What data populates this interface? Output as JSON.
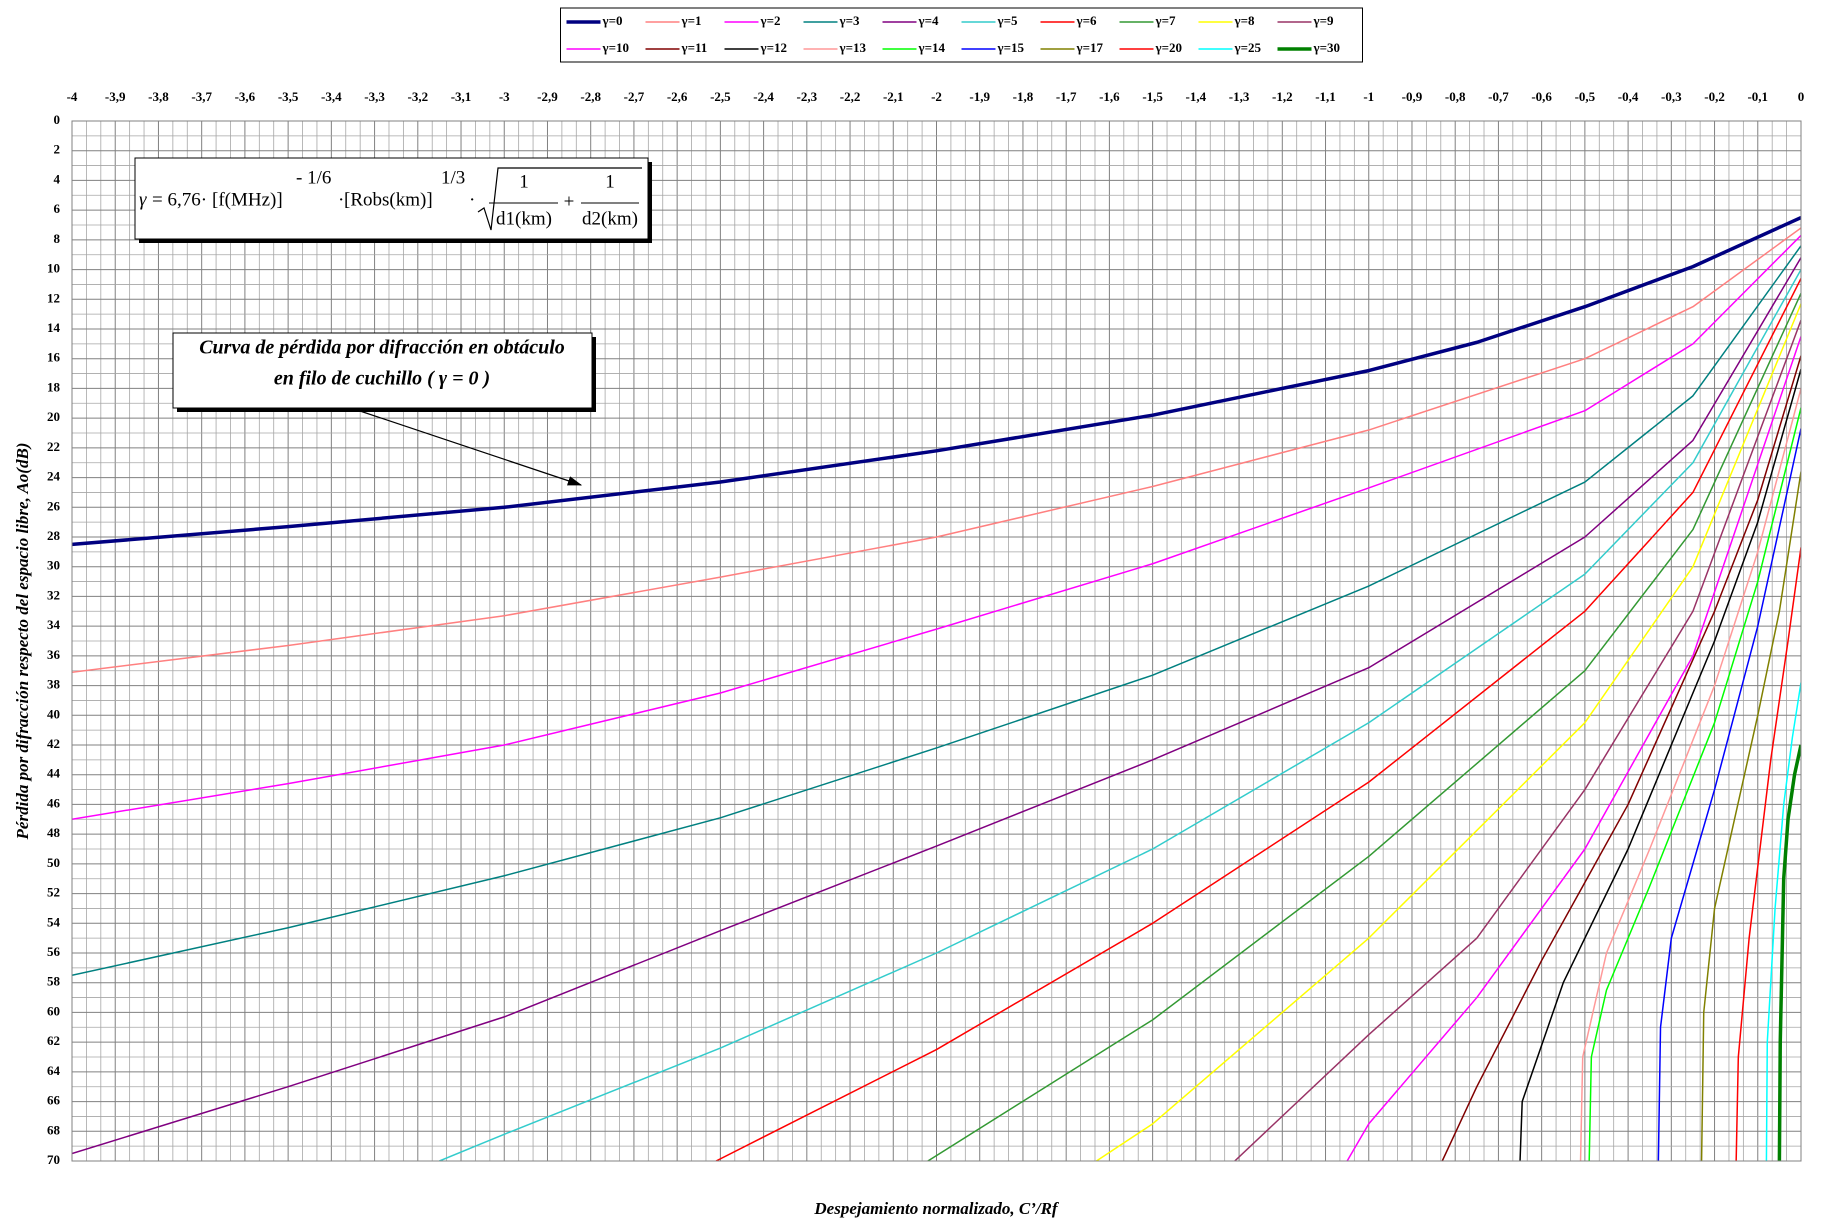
{
  "chart_data": {
    "type": "line",
    "xlabel": "Despejamiento normalizado, C’/Rf",
    "ylabel": "Pérdida por difracción respecto del espacio libre, Ao(dB)",
    "xlim": [
      -4,
      0
    ],
    "ylim": [
      0,
      70
    ],
    "y_reversed": true,
    "x_axis_position": "top",
    "grid": true,
    "legend": "top",
    "xticks": [
      -4,
      {
        "value": -3.9,
        "label": "-3,9"
      },
      {
        "value": -3.8,
        "label": "-3,8"
      },
      {
        "value": -3.7,
        "label": "-3,7"
      },
      {
        "value": -3.6,
        "label": "-3,6"
      },
      {
        "value": -3.5,
        "label": "-3,5"
      },
      {
        "value": -3.4,
        "label": "-3,4"
      },
      {
        "value": -3.3,
        "label": "-3,3"
      },
      {
        "value": -3.2,
        "label": "-3,2"
      },
      {
        "value": -3.1,
        "label": "-3,1"
      },
      -3,
      {
        "value": -2.9,
        "label": "-2,9"
      },
      {
        "value": -2.8,
        "label": "-2,8"
      },
      {
        "value": -2.7,
        "label": "-2,7"
      },
      {
        "value": -2.6,
        "label": "-2,6"
      },
      {
        "value": -2.5,
        "label": "-2,5"
      },
      {
        "value": -2.4,
        "label": "-2,4"
      },
      {
        "value": -2.3,
        "label": "-2,3"
      },
      {
        "value": -2.2,
        "label": "-2,2"
      },
      {
        "value": -2.1,
        "label": "-2,1"
      },
      -2,
      {
        "value": -1.9,
        "label": "-1,9"
      },
      {
        "value": -1.8,
        "label": "-1,8"
      },
      {
        "value": -1.7,
        "label": "-1,7"
      },
      {
        "value": -1.6,
        "label": "-1,6"
      },
      {
        "value": -1.5,
        "label": "-1,5"
      },
      {
        "value": -1.4,
        "label": "-1,4"
      },
      {
        "value": -1.3,
        "label": "-1,3"
      },
      {
        "value": -1.2,
        "label": "-1,2"
      },
      {
        "value": -1.1,
        "label": "-1,1"
      },
      -1,
      {
        "value": -0.9,
        "label": "-0,9"
      },
      {
        "value": -0.8,
        "label": "-0,8"
      },
      {
        "value": -0.7,
        "label": "-0,7"
      },
      {
        "value": -0.6,
        "label": "-0,6"
      },
      {
        "value": -0.5,
        "label": "-0,5"
      },
      {
        "value": -0.4,
        "label": "-0,4"
      },
      {
        "value": -0.3,
        "label": "-0,3"
      },
      {
        "value": -0.2,
        "label": "-0,2"
      },
      {
        "value": -0.1,
        "label": "-0,1"
      },
      0
    ],
    "yticks": [
      0,
      2,
      4,
      6,
      8,
      10,
      12,
      14,
      16,
      18,
      20,
      22,
      24,
      26,
      28,
      30,
      32,
      34,
      36,
      38,
      40,
      42,
      44,
      46,
      48,
      50,
      52,
      54,
      56,
      58,
      60,
      62,
      64,
      66,
      68,
      70
    ],
    "series": [
      {
        "name": "γ=0",
        "color": "#000080",
        "line_width": 3.5,
        "x": [
          -4,
          -3.5,
          -3,
          -2.5,
          -2,
          -1.5,
          -1,
          -0.75,
          -0.5,
          -0.25,
          0
        ],
        "values": [
          28.5,
          27.3,
          26.0,
          24.3,
          22.2,
          19.8,
          16.8,
          14.9,
          12.5,
          9.8,
          6.5
        ]
      },
      {
        "name": "γ=1",
        "color": "#ff8080",
        "line_width": 1.5,
        "x": [
          -4,
          -3.5,
          -3,
          -2.5,
          -2,
          -1.5,
          -1,
          -0.5,
          -0.25,
          0
        ],
        "values": [
          37.1,
          35.3,
          33.3,
          30.7,
          28,
          24.6,
          20.8,
          16,
          12.5,
          7.2
        ]
      },
      {
        "name": "γ=2",
        "color": "#ff00ff",
        "line_width": 1.5,
        "x": [
          -4,
          -3.5,
          -3,
          -2.5,
          -2,
          -1.5,
          -1,
          -0.5,
          -0.25,
          0
        ],
        "values": [
          47,
          44.6,
          42,
          38.5,
          34.2,
          29.8,
          24.7,
          19.5,
          15,
          7.7
        ]
      },
      {
        "name": "γ=3",
        "color": "#008080",
        "line_width": 1.5,
        "x": [
          -4,
          -3.5,
          -3,
          -2.5,
          -2,
          -1.5,
          -1,
          -0.5,
          -0.25,
          0
        ],
        "values": [
          57.5,
          54.3,
          50.8,
          46.9,
          42.2,
          37.3,
          31.3,
          24.3,
          18.5,
          8.4
        ]
      },
      {
        "name": "γ=4",
        "color": "#800080",
        "line_width": 1.5,
        "x": [
          -4,
          -3.5,
          -3,
          -2.5,
          -2,
          -1.5,
          -1,
          -0.5,
          -0.25,
          0
        ],
        "values": [
          69.5,
          65,
          60.3,
          54.5,
          48.8,
          43,
          36.8,
          28,
          21.5,
          9.2
        ]
      },
      {
        "name": "γ=5",
        "color": "#33cccc",
        "line_width": 1.5,
        "x": [
          -3.15,
          -3,
          -2.5,
          -2,
          -1.5,
          -1,
          -0.5,
          -0.25,
          0
        ],
        "values": [
          70,
          68.2,
          62.4,
          56,
          49,
          40.5,
          30.5,
          23,
          10
        ]
      },
      {
        "name": "γ=6",
        "color": "#ff0000",
        "line_width": 1.5,
        "x": [
          -2.51,
          -2,
          -1.5,
          -1,
          -0.5,
          -0.25,
          0
        ],
        "values": [
          70,
          62.5,
          54,
          44.5,
          33,
          25,
          10.6
        ]
      },
      {
        "name": "γ=7",
        "color": "#339933",
        "line_width": 1.5,
        "x": [
          -2.02,
          -1.5,
          -1,
          -0.5,
          -0.25,
          0
        ],
        "values": [
          70,
          60.5,
          49.5,
          37,
          27.5,
          11.6
        ]
      },
      {
        "name": "γ=8",
        "color": "#ffff00",
        "line_width": 1.5,
        "x": [
          -1.63,
          -1.5,
          -1,
          -0.5,
          -0.25,
          0
        ],
        "values": [
          70,
          67.5,
          55,
          40.5,
          30,
          12.3
        ]
      },
      {
        "name": "γ=9",
        "color": "#993366",
        "line_width": 1.5,
        "x": [
          -1.31,
          -1,
          -0.75,
          -0.5,
          -0.25,
          0
        ],
        "values": [
          70,
          61.5,
          55,
          45,
          33,
          13.4
        ]
      },
      {
        "name": "γ=10",
        "color": "#ff00ff",
        "line_width": 1.5,
        "x": [
          -1.05,
          -1,
          -0.75,
          -0.5,
          -0.25,
          0
        ],
        "values": [
          70,
          67.5,
          59,
          49,
          36,
          14.5
        ]
      },
      {
        "name": "γ=11",
        "color": "#800000",
        "line_width": 1.5,
        "x": [
          -0.83,
          -0.75,
          -0.6,
          -0.4,
          -0.2,
          -0.1,
          0
        ],
        "values": [
          70,
          65,
          56.5,
          46,
          33,
          25.5,
          15.8
        ]
      },
      {
        "name": "γ=12",
        "color": "#000000",
        "line_width": 1.5,
        "x": [
          -0.65,
          -0.645,
          -0.55,
          -0.4,
          -0.2,
          -0.1,
          0
        ],
        "values": [
          70,
          66,
          58,
          49,
          35,
          27,
          16.7
        ]
      },
      {
        "name": "γ=13",
        "color": "#ff9999",
        "line_width": 1.5,
        "x": [
          -0.51,
          -0.505,
          -0.45,
          -0.35,
          -0.2,
          -0.1,
          0
        ],
        "values": [
          70,
          63,
          56,
          49,
          38,
          29,
          18
        ]
      },
      {
        "name": "γ=14",
        "color": "#00ff00",
        "line_width": 1.5,
        "x": [
          -0.49,
          -0.485,
          -0.45,
          -0.35,
          -0.2,
          -0.1,
          0
        ],
        "values": [
          70,
          63,
          58.5,
          51.5,
          40.5,
          31,
          19.3
        ]
      },
      {
        "name": "γ=15",
        "color": "#0000ff",
        "line_width": 1.5,
        "x": [
          -0.33,
          -0.325,
          -0.3,
          -0.2,
          -0.1,
          0
        ],
        "values": [
          70,
          61,
          55,
          45,
          34,
          20.7
        ]
      },
      {
        "name": "γ=17",
        "color": "#808000",
        "line_width": 1.5,
        "x": [
          -0.23,
          -0.225,
          -0.2,
          -0.1,
          -0.05,
          0
        ],
        "values": [
          70,
          60,
          53,
          40,
          33,
          23.6
        ]
      },
      {
        "name": "γ=20",
        "color": "#ff0000",
        "line_width": 1.5,
        "x": [
          -0.15,
          -0.145,
          -0.12,
          -0.07,
          -0.03,
          0
        ],
        "values": [
          70,
          63,
          55,
          43,
          35,
          28.7
        ]
      },
      {
        "name": "γ=25",
        "color": "#00ffff",
        "line_width": 1.5,
        "x": [
          -0.08,
          -0.078,
          -0.06,
          -0.04,
          -0.02,
          0
        ],
        "values": [
          70,
          62,
          53,
          46,
          41.5,
          37.8
        ]
      },
      {
        "name": "γ=30",
        "color": "#008000",
        "line_width": 3.5,
        "x": [
          -0.05,
          -0.048,
          -0.04,
          -0.03,
          -0.015,
          0
        ],
        "values": [
          70,
          62,
          51,
          47,
          44,
          42
        ]
      }
    ],
    "formula": [
      "γ",
      "= 6,76·",
      "[f(MHz)]",
      "- 1/6",
      "·",
      "[Robs(km)]",
      "1/3",
      "·",
      "1",
      "d1(km)",
      "+",
      "1",
      "d2(km)"
    ],
    "callout": [
      "Curva de pérdida por difracción en obtáculo",
      "en filo de cuchillo ( γ = 0 )"
    ]
  }
}
